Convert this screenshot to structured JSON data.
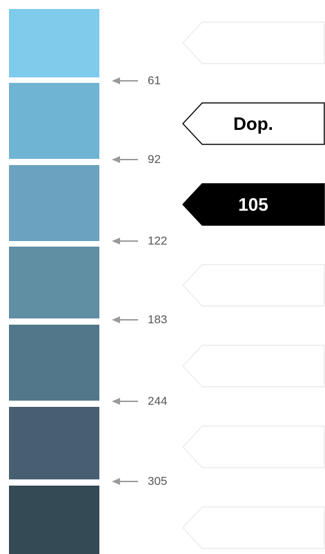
{
  "swatches": [
    {
      "color": "#7ecbec"
    },
    {
      "color": "#70b4d4"
    },
    {
      "color": "#6ba2c0"
    },
    {
      "color": "#608ea3"
    },
    {
      "color": "#53778a"
    },
    {
      "color": "#475f70"
    },
    {
      "color": "#344a55"
    }
  ],
  "ticks": [
    {
      "label": "61"
    },
    {
      "label": "92"
    },
    {
      "label": "122"
    },
    {
      "label": "183"
    },
    {
      "label": "244"
    },
    {
      "label": "305"
    }
  ],
  "markers": [
    {
      "label": "",
      "style": "empty"
    },
    {
      "label": "Dop.",
      "style": "outlined"
    },
    {
      "label": "105",
      "style": "filled"
    },
    {
      "label": "",
      "style": "empty"
    },
    {
      "label": "",
      "style": "empty"
    },
    {
      "label": "",
      "style": "empty"
    },
    {
      "label": "",
      "style": "empty"
    }
  ],
  "colors": {
    "arrow": "#9a9a9a",
    "tick_text": "#555555",
    "marker_filled_bg": "#000000",
    "marker_filled_text": "#ffffff",
    "marker_outlined_border": "#000000",
    "marker_outlined_text": "#000000",
    "marker_empty_border": "#ececec"
  }
}
